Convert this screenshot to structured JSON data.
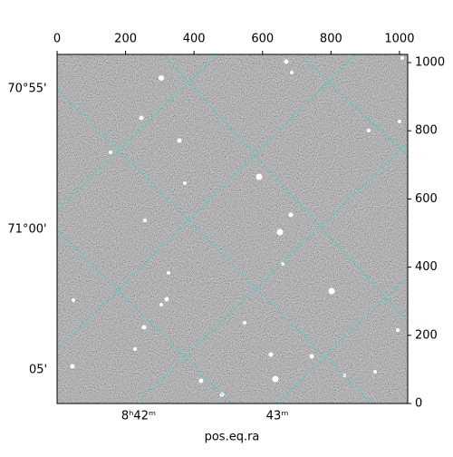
{
  "chart_data": {
    "type": "image",
    "xlabel": "pos.eq.ra",
    "xlim": [
      0,
      1024
    ],
    "xticks": [
      0,
      200,
      400,
      600,
      800,
      1000
    ],
    "y2lim": [
      0,
      1024
    ],
    "y2ticks": [
      0,
      200,
      400,
      600,
      800,
      1000
    ],
    "world_y_labels": [
      "70°55'",
      "71°00'",
      "05'"
    ],
    "world_x_labels": [
      "8ʰ42ᵐ",
      "43ᵐ"
    ]
  }
}
